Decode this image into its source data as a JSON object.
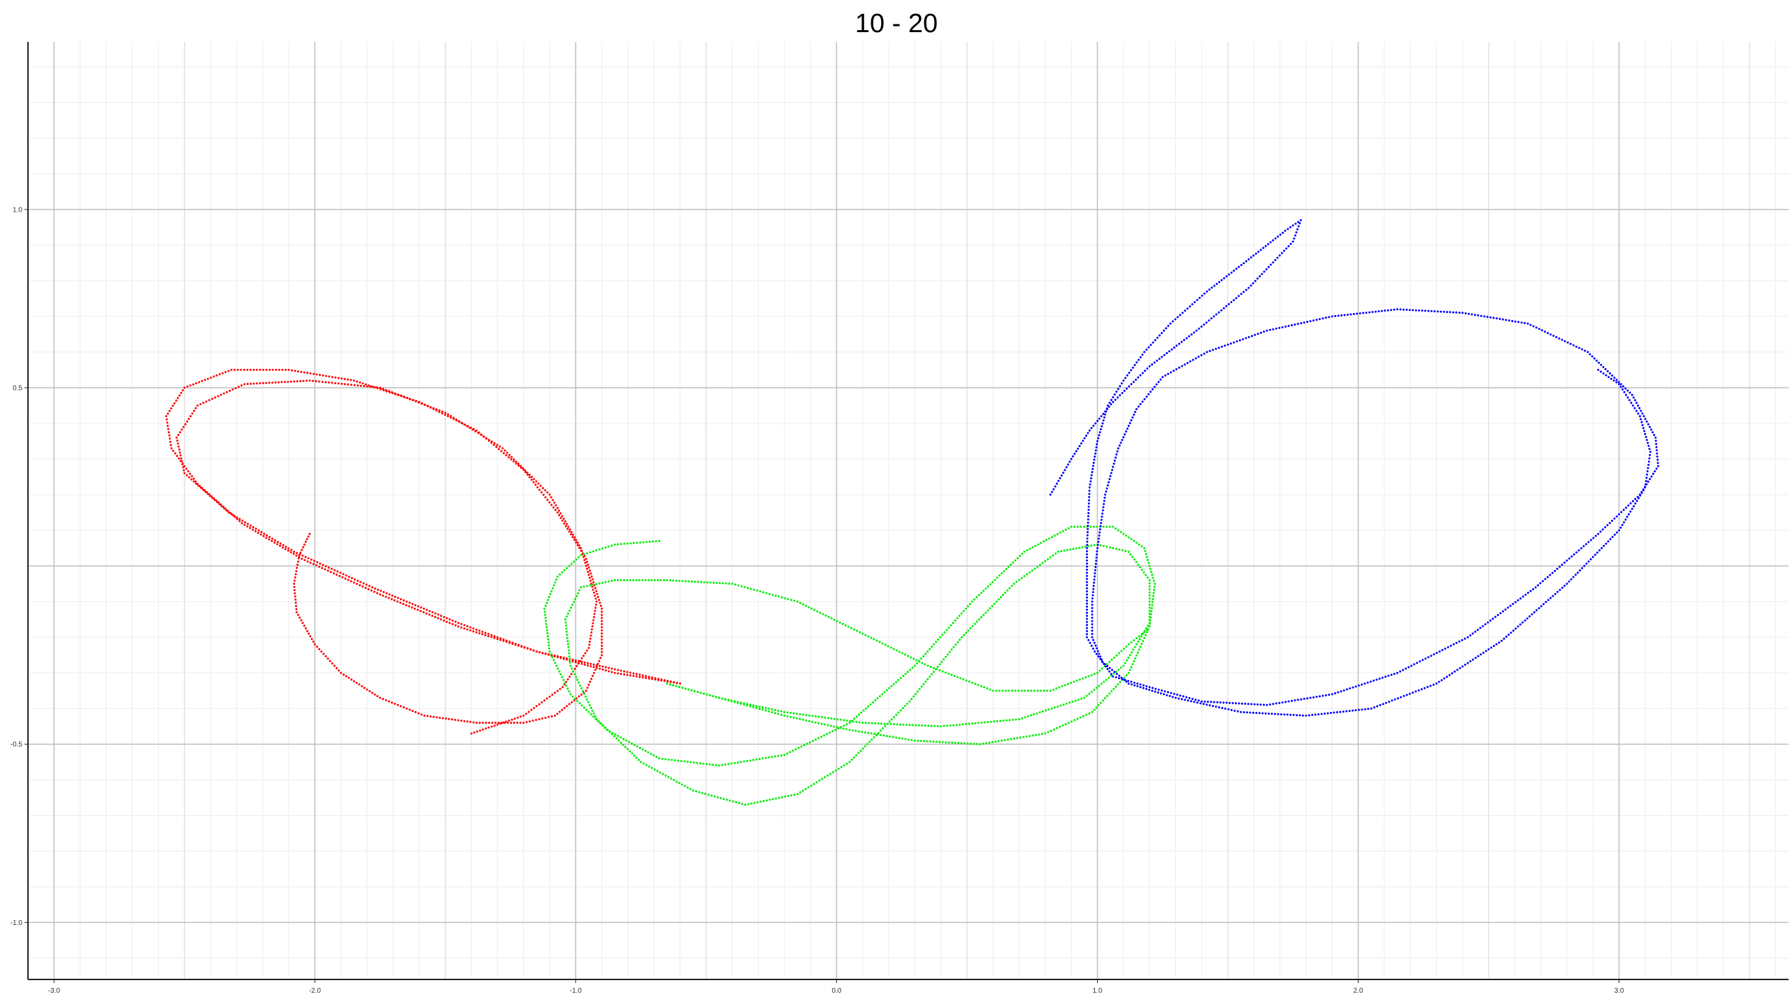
{
  "chart_data": {
    "type": "scatter",
    "title": "10 - 20",
    "xlabel": "",
    "ylabel": "",
    "xlim": [
      -3.1,
      3.65
    ],
    "ylim": [
      -1.16,
      1.47
    ],
    "x_ticks": [
      -3.0,
      -2.0,
      -1.0,
      0.0,
      1.0,
      2.0,
      3.0
    ],
    "x_tick_labels": [
      "-3.0",
      "-2.0",
      "-1.0",
      "0.0",
      "1.0",
      "2.0",
      "3.0"
    ],
    "y_ticks": [
      -1.0,
      -0.5,
      0.5,
      1.0
    ],
    "y_tick_labels": [
      "-1.0",
      "-0.5",
      "0.5",
      "1.0"
    ],
    "grid": true,
    "legend": "none",
    "series": [
      {
        "color": "#ff0000",
        "points": [
          [
            -2.02,
            0.09
          ],
          [
            -2.06,
            0.03
          ],
          [
            -2.08,
            -0.05
          ],
          [
            -2.07,
            -0.13
          ],
          [
            -2.0,
            -0.22
          ],
          [
            -1.9,
            -0.3
          ],
          [
            -1.75,
            -0.37
          ],
          [
            -1.58,
            -0.42
          ],
          [
            -1.38,
            -0.44
          ],
          [
            -1.2,
            -0.44
          ],
          [
            -1.08,
            -0.42
          ],
          [
            -0.96,
            -0.35
          ],
          [
            -0.9,
            -0.25
          ],
          [
            -0.9,
            -0.12
          ],
          [
            -0.96,
            0.02
          ],
          [
            -1.07,
            0.15
          ],
          [
            -1.2,
            0.27
          ],
          [
            -1.38,
            0.38
          ],
          [
            -1.6,
            0.46
          ],
          [
            -1.85,
            0.52
          ],
          [
            -2.1,
            0.55
          ],
          [
            -2.32,
            0.55
          ],
          [
            -2.5,
            0.5
          ],
          [
            -2.57,
            0.42
          ],
          [
            -2.55,
            0.33
          ],
          [
            -2.45,
            0.23
          ],
          [
            -2.28,
            0.12
          ],
          [
            -2.05,
            0.02
          ],
          [
            -1.75,
            -0.08
          ],
          [
            -1.45,
            -0.17
          ],
          [
            -1.15,
            -0.24
          ],
          [
            -0.85,
            -0.29
          ],
          [
            -0.6,
            -0.33
          ],
          [
            -0.85,
            -0.3
          ],
          [
            -1.15,
            -0.24
          ],
          [
            -1.45,
            -0.16
          ],
          [
            -1.78,
            -0.06
          ],
          [
            -2.08,
            0.04
          ],
          [
            -2.33,
            0.15
          ],
          [
            -2.5,
            0.26
          ],
          [
            -2.53,
            0.36
          ],
          [
            -2.45,
            0.45
          ],
          [
            -2.27,
            0.51
          ],
          [
            -2.02,
            0.52
          ],
          [
            -1.75,
            0.5
          ],
          [
            -1.5,
            0.43
          ],
          [
            -1.28,
            0.33
          ],
          [
            -1.1,
            0.2
          ],
          [
            -0.98,
            0.05
          ],
          [
            -0.92,
            -0.1
          ],
          [
            -0.95,
            -0.23
          ],
          [
            -1.05,
            -0.34
          ],
          [
            -1.2,
            -0.42
          ],
          [
            -1.4,
            -0.47
          ]
        ]
      },
      {
        "color": "#00ee00",
        "points": [
          [
            -0.68,
            0.07
          ],
          [
            -0.85,
            0.06
          ],
          [
            -0.98,
            0.03
          ],
          [
            -1.07,
            -0.03
          ],
          [
            -1.12,
            -0.12
          ],
          [
            -1.1,
            -0.24
          ],
          [
            -1.02,
            -0.36
          ],
          [
            -0.88,
            -0.46
          ],
          [
            -0.68,
            -0.54
          ],
          [
            -0.45,
            -0.56
          ],
          [
            -0.2,
            -0.53
          ],
          [
            0.05,
            -0.44
          ],
          [
            0.3,
            -0.28
          ],
          [
            0.52,
            -0.1
          ],
          [
            0.72,
            0.04
          ],
          [
            0.9,
            0.11
          ],
          [
            1.06,
            0.11
          ],
          [
            1.18,
            0.05
          ],
          [
            1.22,
            -0.05
          ],
          [
            1.2,
            -0.17
          ],
          [
            1.12,
            -0.3
          ],
          [
            0.98,
            -0.41
          ],
          [
            0.8,
            -0.47
          ],
          [
            0.55,
            -0.5
          ],
          [
            0.3,
            -0.49
          ],
          [
            0.05,
            -0.46
          ],
          [
            -0.2,
            -0.42
          ],
          [
            -0.45,
            -0.37
          ],
          [
            -0.65,
            -0.33
          ],
          [
            -0.45,
            -0.37
          ],
          [
            -0.2,
            -0.41
          ],
          [
            0.1,
            -0.44
          ],
          [
            0.4,
            -0.45
          ],
          [
            0.7,
            -0.43
          ],
          [
            0.95,
            -0.37
          ],
          [
            1.1,
            -0.28
          ],
          [
            1.2,
            -0.16
          ],
          [
            1.2,
            -0.04
          ],
          [
            1.12,
            0.04
          ],
          [
            1.0,
            0.06
          ],
          [
            0.85,
            0.04
          ],
          [
            0.68,
            -0.05
          ],
          [
            0.48,
            -0.2
          ],
          [
            0.28,
            -0.38
          ],
          [
            0.05,
            -0.55
          ],
          [
            -0.15,
            -0.64
          ],
          [
            -0.35,
            -0.67
          ],
          [
            -0.55,
            -0.63
          ],
          [
            -0.75,
            -0.55
          ],
          [
            -0.92,
            -0.43
          ],
          [
            -1.02,
            -0.28
          ],
          [
            -1.04,
            -0.15
          ],
          [
            -0.98,
            -0.06
          ],
          [
            -0.85,
            -0.04
          ],
          [
            -0.65,
            -0.04
          ],
          [
            -0.4,
            -0.05
          ],
          [
            -0.15,
            -0.1
          ],
          [
            0.1,
            -0.19
          ],
          [
            0.35,
            -0.28
          ],
          [
            0.6,
            -0.35
          ],
          [
            0.82,
            -0.35
          ],
          [
            1.0,
            -0.3
          ],
          [
            1.12,
            -0.22
          ],
          [
            1.19,
            -0.18
          ]
        ]
      },
      {
        "color": "#0000ff",
        "points": [
          [
            0.82,
            0.2
          ],
          [
            0.9,
            0.3
          ],
          [
            0.97,
            0.38
          ],
          [
            1.06,
            0.46
          ],
          [
            1.2,
            0.56
          ],
          [
            1.38,
            0.66
          ],
          [
            1.58,
            0.78
          ],
          [
            1.75,
            0.91
          ],
          [
            1.78,
            0.97
          ],
          [
            1.72,
            0.94
          ],
          [
            1.58,
            0.86
          ],
          [
            1.42,
            0.77
          ],
          [
            1.28,
            0.68
          ],
          [
            1.18,
            0.6
          ],
          [
            1.1,
            0.52
          ],
          [
            1.04,
            0.45
          ],
          [
            1.0,
            0.35
          ],
          [
            0.97,
            0.22
          ],
          [
            0.96,
            0.05
          ],
          [
            0.96,
            -0.08
          ],
          [
            0.96,
            -0.2
          ],
          [
            0.99,
            -0.24
          ],
          [
            1.06,
            -0.31
          ],
          [
            1.2,
            -0.34
          ],
          [
            1.4,
            -0.38
          ],
          [
            1.65,
            -0.39
          ],
          [
            1.9,
            -0.36
          ],
          [
            2.15,
            -0.3
          ],
          [
            2.42,
            -0.2
          ],
          [
            2.68,
            -0.06
          ],
          [
            2.92,
            0.09
          ],
          [
            3.08,
            0.2
          ],
          [
            3.15,
            0.28
          ],
          [
            3.14,
            0.36
          ],
          [
            3.05,
            0.48
          ],
          [
            2.88,
            0.6
          ],
          [
            2.65,
            0.68
          ],
          [
            2.4,
            0.71
          ],
          [
            2.15,
            0.72
          ],
          [
            1.9,
            0.7
          ],
          [
            1.65,
            0.66
          ],
          [
            1.42,
            0.6
          ],
          [
            1.25,
            0.53
          ],
          [
            1.15,
            0.44
          ],
          [
            1.08,
            0.33
          ],
          [
            1.03,
            0.2
          ],
          [
            1.0,
            0.05
          ],
          [
            0.98,
            -0.1
          ],
          [
            0.98,
            -0.2
          ],
          [
            1.02,
            -0.27
          ],
          [
            1.12,
            -0.33
          ],
          [
            1.3,
            -0.37
          ],
          [
            1.55,
            -0.41
          ],
          [
            1.8,
            -0.42
          ],
          [
            2.05,
            -0.4
          ],
          [
            2.3,
            -0.33
          ],
          [
            2.55,
            -0.21
          ],
          [
            2.8,
            -0.05
          ],
          [
            3.0,
            0.1
          ],
          [
            3.1,
            0.22
          ],
          [
            3.12,
            0.32
          ],
          [
            3.08,
            0.42
          ],
          [
            3.0,
            0.51
          ],
          [
            2.92,
            0.55
          ]
        ]
      }
    ]
  }
}
